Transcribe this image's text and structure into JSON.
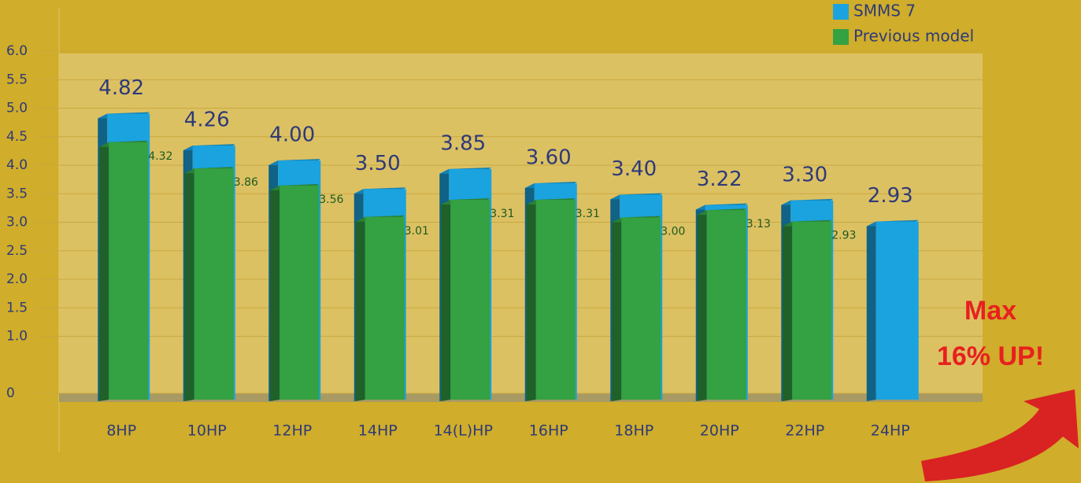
{
  "chart_data": {
    "type": "bar",
    "categories": [
      "8HP",
      "10HP",
      "12HP",
      "14HP",
      "14(L)HP",
      "16HP",
      "18HP",
      "20HP",
      "22HP",
      "24HP"
    ],
    "series": [
      {
        "name": "SMMS 7",
        "color": "#1aa3df",
        "values": [
          4.82,
          4.26,
          4.0,
          3.5,
          3.85,
          3.6,
          3.4,
          3.22,
          3.3,
          2.93
        ],
        "value_labels": [
          "4.82",
          "4.26",
          "4.00",
          "3.50",
          "3.85",
          "3.60",
          "3.40",
          "3.22",
          "3.30",
          "2.93"
        ]
      },
      {
        "name": "Previous model",
        "color": "#34a142",
        "values": [
          4.32,
          3.86,
          3.56,
          3.01,
          3.31,
          3.31,
          3.0,
          3.13,
          2.93,
          null
        ],
        "value_labels": [
          "4.32",
          "3.86",
          "3.56",
          "3.01",
          "3.31",
          "3.31",
          "3.00",
          "3.13",
          "2.93",
          null
        ]
      }
    ],
    "ylim": [
      0,
      6
    ],
    "yticks": [
      0,
      {
        "value": 1,
        "label": "1.0"
      },
      1.5,
      {
        "value": 2,
        "label": "2.0"
      },
      2.5,
      {
        "value": 3,
        "label": "3.0"
      },
      3.5,
      {
        "value": 4,
        "label": "4.0"
      },
      4.5,
      {
        "value": 5,
        "label": "5.0"
      },
      5.5,
      {
        "value": 6,
        "label": "6.0"
      }
    ],
    "grid": true,
    "legend": "top-right",
    "annotation": [
      "Max",
      "16% UP!"
    ]
  }
}
